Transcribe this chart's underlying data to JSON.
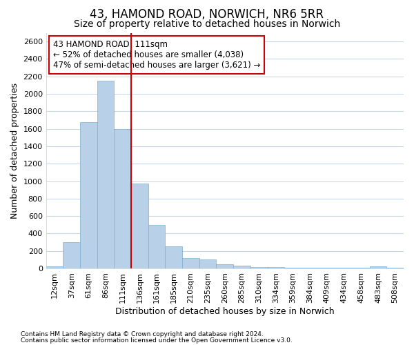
{
  "title1": "43, HAMOND ROAD, NORWICH, NR6 5RR",
  "title2": "Size of property relative to detached houses in Norwich",
  "xlabel": "Distribution of detached houses by size in Norwich",
  "ylabel": "Number of detached properties",
  "categories": [
    "12sqm",
    "37sqm",
    "61sqm",
    "86sqm",
    "111sqm",
    "136sqm",
    "161sqm",
    "185sqm",
    "210sqm",
    "235sqm",
    "260sqm",
    "285sqm",
    "310sqm",
    "334sqm",
    "359sqm",
    "384sqm",
    "409sqm",
    "434sqm",
    "458sqm",
    "483sqm",
    "508sqm"
  ],
  "values": [
    25,
    300,
    1680,
    2150,
    1600,
    970,
    500,
    250,
    120,
    100,
    50,
    30,
    20,
    15,
    10,
    8,
    5,
    5,
    5,
    25,
    5
  ],
  "bar_color": "#b8d0e8",
  "bar_edge_color": "#7aafd4",
  "highlight_index": 4,
  "highlight_color": "#cc0000",
  "ylim": [
    0,
    2700
  ],
  "yticks": [
    0,
    200,
    400,
    600,
    800,
    1000,
    1200,
    1400,
    1600,
    1800,
    2000,
    2200,
    2400,
    2600
  ],
  "annotation_text": "43 HAMOND ROAD: 111sqm\n← 52% of detached houses are smaller (4,038)\n47% of semi-detached houses are larger (3,621) →",
  "annotation_box_color": "#ffffff",
  "annotation_box_edge_color": "#cc0000",
  "footer1": "Contains HM Land Registry data © Crown copyright and database right 2024.",
  "footer2": "Contains public sector information licensed under the Open Government Licence v3.0.",
  "bg_color": "#ffffff",
  "plot_bg_color": "#ffffff",
  "grid_color": "#c8d8e8",
  "title1_fontsize": 12,
  "title2_fontsize": 10,
  "tick_fontsize": 8,
  "ylabel_fontsize": 9,
  "xlabel_fontsize": 9,
  "annotation_fontsize": 8.5
}
